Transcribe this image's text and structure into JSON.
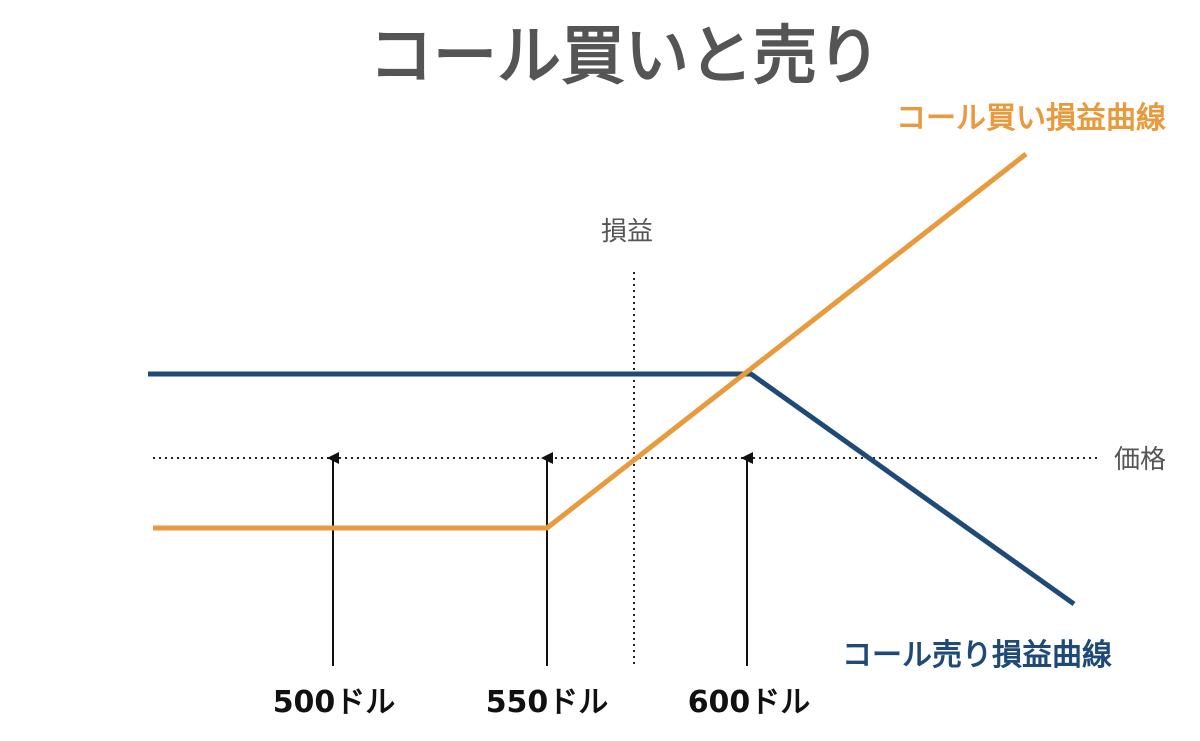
{
  "title": "コール買いと売り",
  "axes": {
    "y_label": "損益",
    "x_label": "価格"
  },
  "price_marks": [
    {
      "label": "500ドル",
      "value": 500
    },
    {
      "label": "550ドル",
      "value": 550
    },
    {
      "label": "600ドル",
      "value": 600
    }
  ],
  "series": [
    {
      "name": "コール買い損益曲線",
      "color": "#E89A3C"
    },
    {
      "name": "コール売り損益曲線",
      "color": "#1F4A78"
    }
  ],
  "colors": {
    "title": "#555555",
    "axis": "#222222",
    "marks": "#111111"
  }
}
